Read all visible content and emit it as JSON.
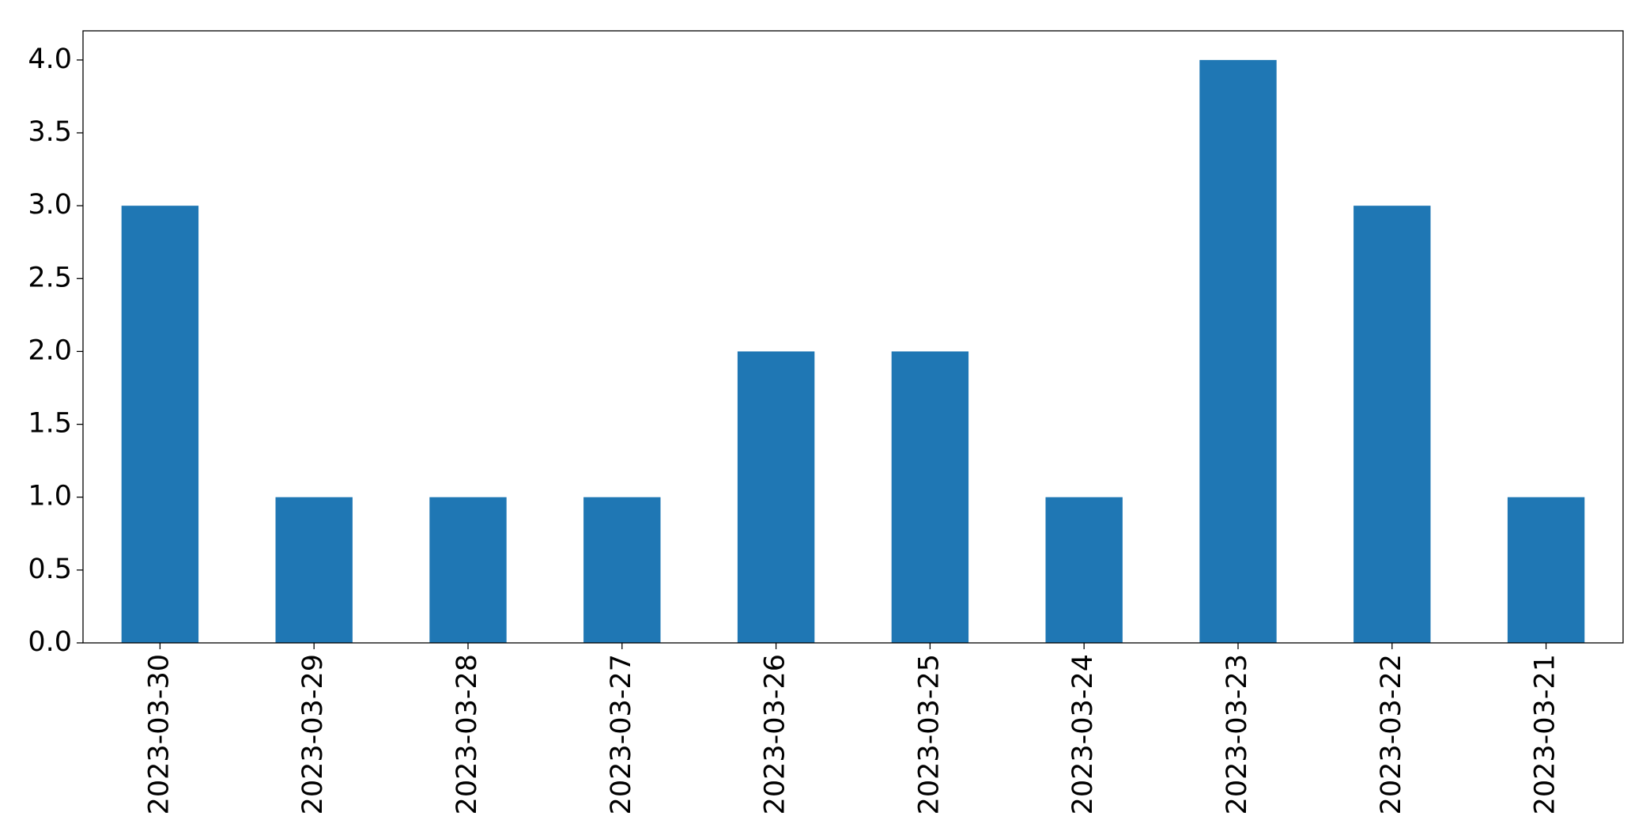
{
  "chart_data": {
    "type": "bar",
    "categories": [
      "2023-03-30",
      "2023-03-29",
      "2023-03-28",
      "2023-03-27",
      "2023-03-26",
      "2023-03-25",
      "2023-03-24",
      "2023-03-23",
      "2023-03-22",
      "2023-03-21"
    ],
    "values": [
      3,
      1,
      1,
      1,
      2,
      2,
      1,
      4,
      3,
      1
    ],
    "color": "#1f77b4",
    "ylim": [
      0,
      4.2
    ],
    "yticks": [
      {
        "value": 0,
        "label": "0.0"
      },
      0.5,
      {
        "value": 1,
        "label": "1.0"
      },
      1.5,
      {
        "value": 2,
        "label": "2.0"
      },
      2.5,
      {
        "value": 3,
        "label": "3.0"
      },
      3.5,
      {
        "value": 4,
        "label": "4.0"
      }
    ],
    "grid": false
  }
}
